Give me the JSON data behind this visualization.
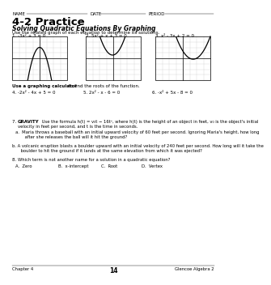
{
  "title": "4-2 Practice",
  "subtitle": "Solving Quadratic Equations By Graphing",
  "bg_color": "#ffffff",
  "section1_intro": "Use the related graph of each equation to determine its solutions.",
  "equations_graphs": [
    {
      "label": "1. -3x² + 3 = 0"
    },
    {
      "label": "2. 5x² + x + 3 = 0"
    },
    {
      "label": "3. x² - 3x + 2 = 0"
    }
  ],
  "section2_intro_bold": "Use a graphing calculator",
  "section2_intro_rest": " to find the roots of the function.",
  "equations_calc": [
    {
      "label": "4. -2x² - 4x + 5 = 0"
    },
    {
      "label": "5. 2x² - x - 6 = 0"
    },
    {
      "label": "6. -x² + 5x - 8 = 0"
    }
  ],
  "gravity_intro": "Use the formula h(t) = v₀t − 16t², where h(t) is the height of an object in feet, v₀ is the object's initial",
  "gravity_intro2": "velocity in feet per second, and t is the time in seconds.",
  "gravity_a1": "a.  Maria throws a baseball with an initial upward velocity of 60 feet per second. Ignoring Maria's height, how long",
  "gravity_a2": "    after she releases the ball will it hit the ground?",
  "gravity_b1": "b. A volcanic eruption blasts a boulder upward with an initial velocity of 240 feet per second. How long will it take the",
  "gravity_b2": "    boulder to hit the ground if it lands at the same elevation from which it was ejected?",
  "mc_text": "Which term is not another name for a solution in a quadratic equation?",
  "mc_choices": [
    "A.  Zero",
    "B.  x-intercept",
    "C.  Root",
    "D.  Vertex"
  ],
  "footer_left": "Chapter 4",
  "footer_center": "14",
  "footer_right": "Glencoe Algebra 2",
  "graph_grid_color": "#cccccc",
  "graph_axis_color": "#000000",
  "graph_curve_color": "#000000"
}
